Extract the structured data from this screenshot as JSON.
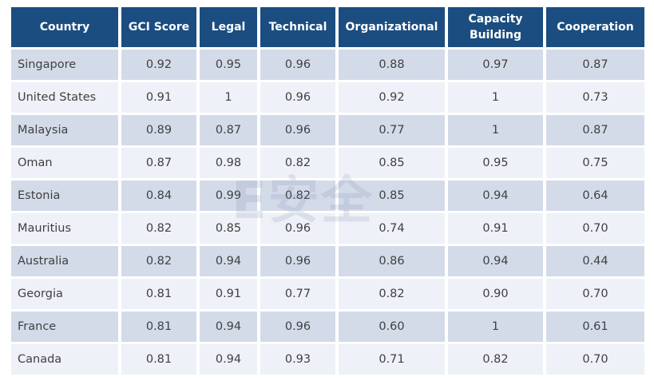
{
  "table": {
    "header": [
      "Country",
      "GCI Score",
      "Legal",
      "Technical",
      "Organizational",
      "Capacity Building",
      "Cooperation"
    ],
    "rows": [
      [
        "Singapore",
        "0.92",
        "0.95",
        "0.96",
        "0.88",
        "0.97",
        "0.87"
      ],
      [
        "United States",
        "0.91",
        "1",
        "0.96",
        "0.92",
        "1",
        "0.73"
      ],
      [
        "Malaysia",
        "0.89",
        "0.87",
        "0.96",
        "0.77",
        "1",
        "0.87"
      ],
      [
        "Oman",
        "0.87",
        "0.98",
        "0.82",
        "0.85",
        "0.95",
        "0.75"
      ],
      [
        "Estonia",
        "0.84",
        "0.99",
        "0.82",
        "0.85",
        "0.94",
        "0.64"
      ],
      [
        "Mauritius",
        "0.82",
        "0.85",
        "0.96",
        "0.74",
        "0.91",
        "0.70"
      ],
      [
        "Australia",
        "0.82",
        "0.94",
        "0.96",
        "0.86",
        "0.94",
        "0.44"
      ],
      [
        "Georgia",
        "0.81",
        "0.91",
        "0.77",
        "0.82",
        "0.90",
        "0.70"
      ],
      [
        "France",
        "0.81",
        "0.94",
        "0.96",
        "0.60",
        "1",
        "0.61"
      ],
      [
        "Canada",
        "0.81",
        "0.94",
        "0.93",
        "0.71",
        "0.82",
        "0.70"
      ]
    ]
  },
  "watermark": "E安全"
}
